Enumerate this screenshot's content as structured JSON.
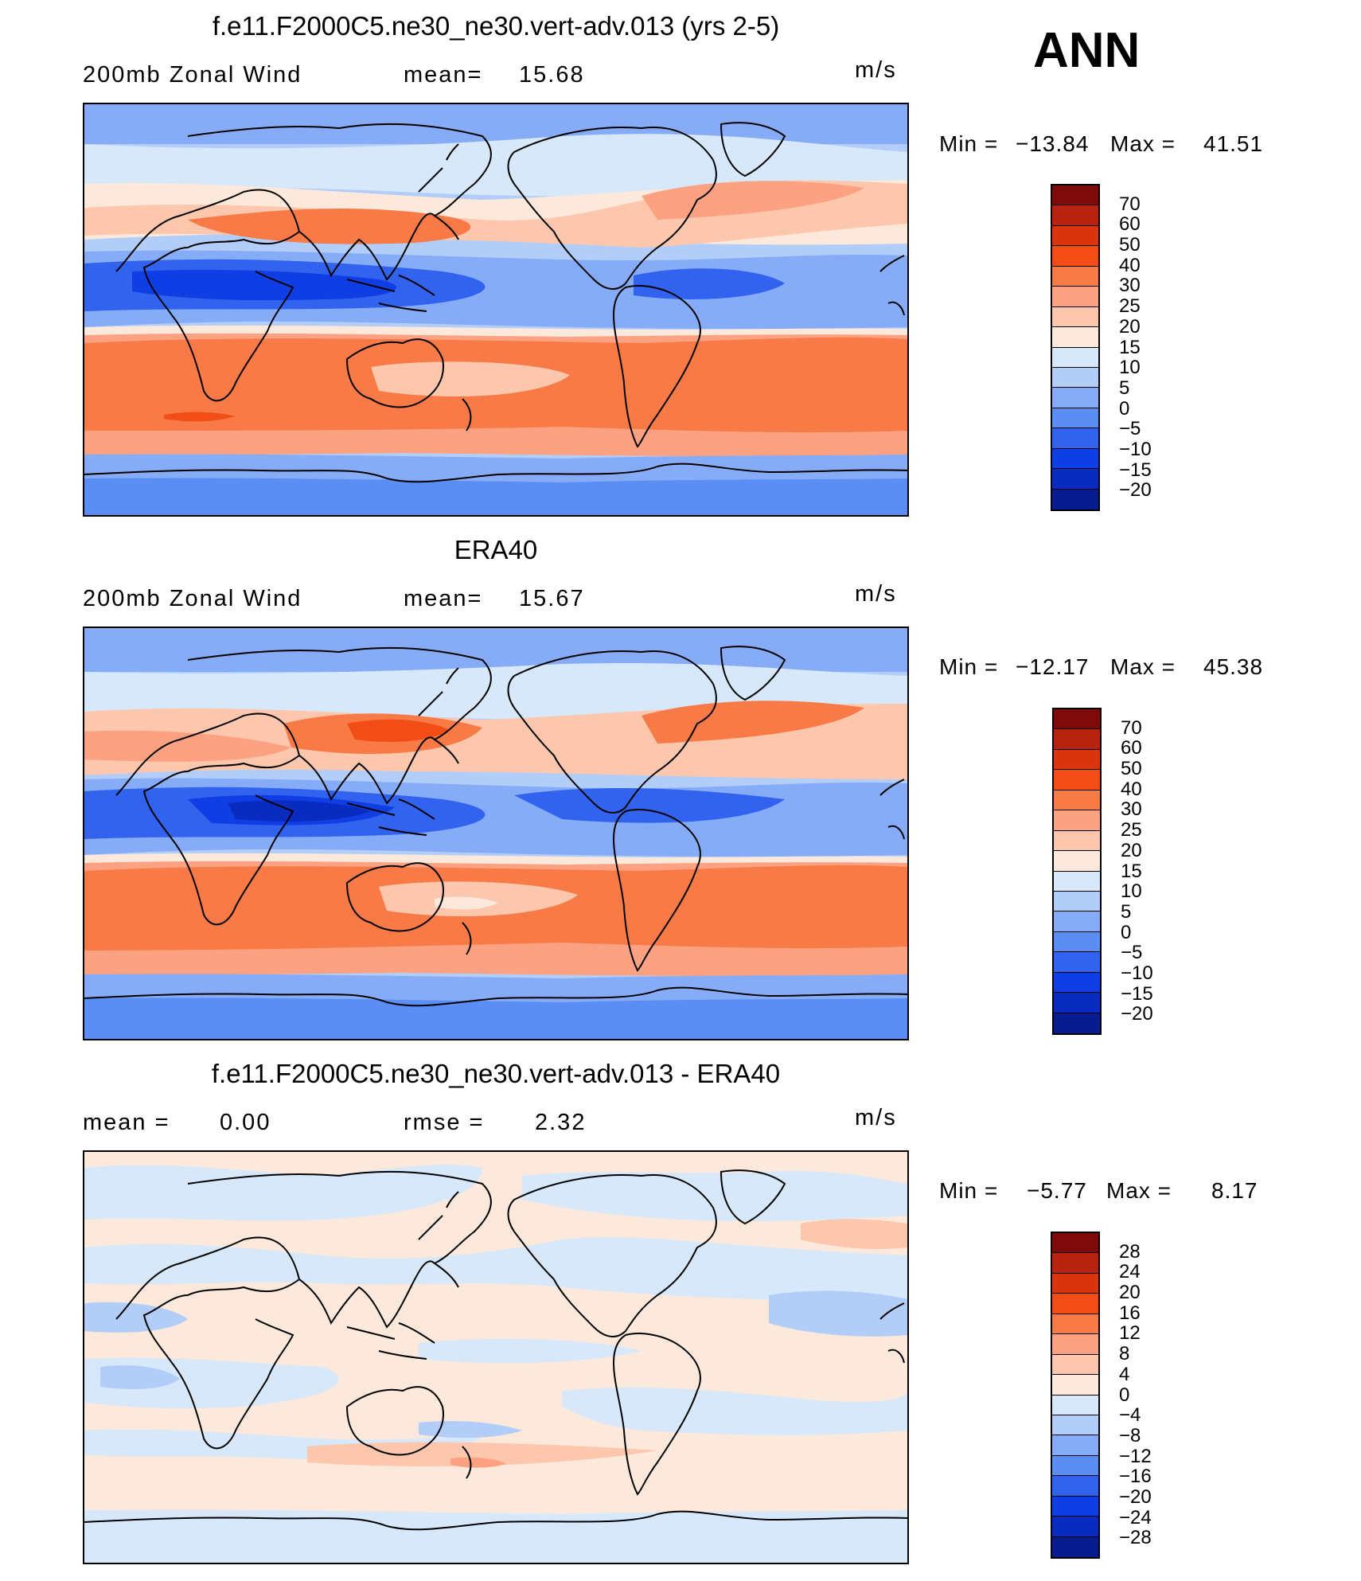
{
  "season": "ANN",
  "panels": [
    {
      "id": "model",
      "title": "f.e11.F2000C5.ne30_ne30.vert-adv.013 (yrs 2-5)",
      "left_label": "200mb  Zonal  Wind",
      "stat_label": "mean=",
      "stat_value": "15.68",
      "units": "m/s",
      "min_label": "Min  =",
      "min_value": "−13.84",
      "max_label": "Max  =",
      "max_value": "41.51",
      "colorbar": {
        "labels": [
          "70",
          "60",
          "50",
          "40",
          "30",
          "25",
          "20",
          "15",
          "10",
          "5",
          "0",
          "−5",
          "−10",
          "−15",
          "−20"
        ],
        "colors": [
          "#7e0a0a",
          "#b8230f",
          "#d8350e",
          "#f24d17",
          "#f87a47",
          "#fca282",
          "#fdc7ad",
          "#fde9dc",
          "#d7e8fb",
          "#b3cdf9",
          "#86acf7",
          "#5a8ef5",
          "#3163ef",
          "#0f3fe4",
          "#0a2bc0",
          "#081b8f"
        ]
      }
    },
    {
      "id": "obs",
      "title": "ERA40",
      "left_label": "200mb  Zonal  Wind",
      "stat_label": "mean=",
      "stat_value": "15.67",
      "units": "m/s",
      "min_label": "Min  =",
      "min_value": "−12.17",
      "max_label": "Max  =",
      "max_value": "45.38",
      "colorbar": {
        "labels": [
          "70",
          "60",
          "50",
          "40",
          "30",
          "25",
          "20",
          "15",
          "10",
          "5",
          "0",
          "−5",
          "−10",
          "−15",
          "−20"
        ],
        "colors": [
          "#7e0a0a",
          "#b8230f",
          "#d8350e",
          "#f24d17",
          "#f87a47",
          "#fca282",
          "#fdc7ad",
          "#fde9dc",
          "#d7e8fb",
          "#b3cdf9",
          "#86acf7",
          "#5a8ef5",
          "#3163ef",
          "#0f3fe4",
          "#0a2bc0",
          "#081b8f"
        ]
      }
    },
    {
      "id": "diff",
      "title": "f.e11.F2000C5.ne30_ne30.vert-adv.013 - ERA40",
      "left_label": "mean  =",
      "left_value": "0.00",
      "stat_label": "rmse  =",
      "stat_value": "2.32",
      "units": "m/s",
      "min_label": "Min  =",
      "min_value": "−5.77",
      "max_label": "Max  =",
      "max_value": "8.17",
      "colorbar": {
        "labels": [
          "28",
          "24",
          "20",
          "16",
          "12",
          "8",
          "4",
          "0",
          "−4",
          "−8",
          "−12",
          "−16",
          "−20",
          "−24",
          "−28"
        ],
        "colors": [
          "#7e0a0a",
          "#b8230f",
          "#d8350e",
          "#f24d17",
          "#f87a47",
          "#fca282",
          "#fdc7ad",
          "#fde9dc",
          "#d7e8fb",
          "#b3cdf9",
          "#86acf7",
          "#5a8ef5",
          "#3163ef",
          "#0f3fe4",
          "#0a2bc0",
          "#081b8f"
        ]
      }
    }
  ]
}
